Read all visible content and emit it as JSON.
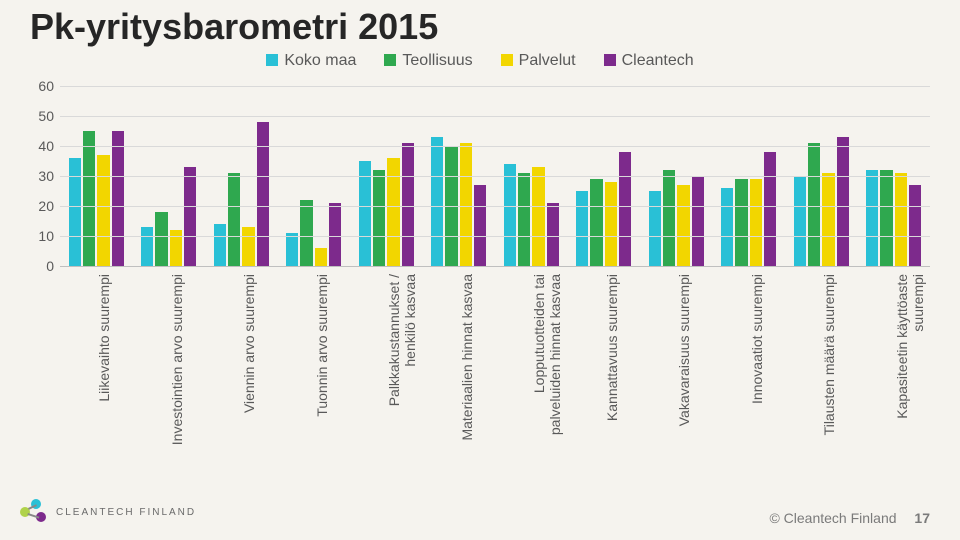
{
  "title": "Pk-yritysbarometri 2015",
  "legend": [
    {
      "label": "Koko maa",
      "color": "#29c0d6"
    },
    {
      "label": "Teollisuus",
      "color": "#2fa84f"
    },
    {
      "label": "Palvelut",
      "color": "#f2d600"
    },
    {
      "label": "Cleantech",
      "color": "#7d2a8c"
    }
  ],
  "chart": {
    "type": "bar",
    "ylim": [
      0,
      60
    ],
    "ytick_step": 10,
    "background_color": "#f5f3ee",
    "grid_color": "#d9d9d9",
    "axis_color": "#bfbfbf",
    "label_fontsize": 14,
    "label_color": "#595959",
    "categories": [
      "Liikevaihto suurempi",
      "Investointien arvo suurempi",
      "Viennin arvo suurempi",
      "Tuonnin arvo suurempi",
      "Palkkakustannukset /\nhenkilö kasvaa",
      "Materiaalien hinnat kasvaa",
      "Lopputuotteiden tai\npalveluiden hinnat kasvaa",
      "Kannattavuus suurempi",
      "Vakavaraisuus suurempi",
      "Innovaatiot suurempi",
      "Tilausten määrä suurempi",
      "Kapasiteetin käyttöaste\nsuurempi"
    ],
    "series_colors": [
      "#29c0d6",
      "#2fa84f",
      "#f2d600",
      "#7d2a8c"
    ],
    "data": [
      [
        36,
        45,
        37,
        45
      ],
      [
        13,
        18,
        12,
        33
      ],
      [
        14,
        31,
        13,
        48
      ],
      [
        11,
        22,
        6,
        21
      ],
      [
        35,
        32,
        36,
        41
      ],
      [
        43,
        40,
        41,
        27
      ],
      [
        34,
        31,
        33,
        21
      ],
      [
        25,
        29,
        28,
        38
      ],
      [
        25,
        32,
        27,
        30
      ],
      [
        26,
        29,
        29,
        38
      ],
      [
        30,
        41,
        31,
        43
      ],
      [
        32,
        32,
        31,
        27
      ]
    ]
  },
  "logo_text": "CLEANTECH\nFINLAND",
  "footer_right": "© Cleantech Finland",
  "page_number": "17"
}
